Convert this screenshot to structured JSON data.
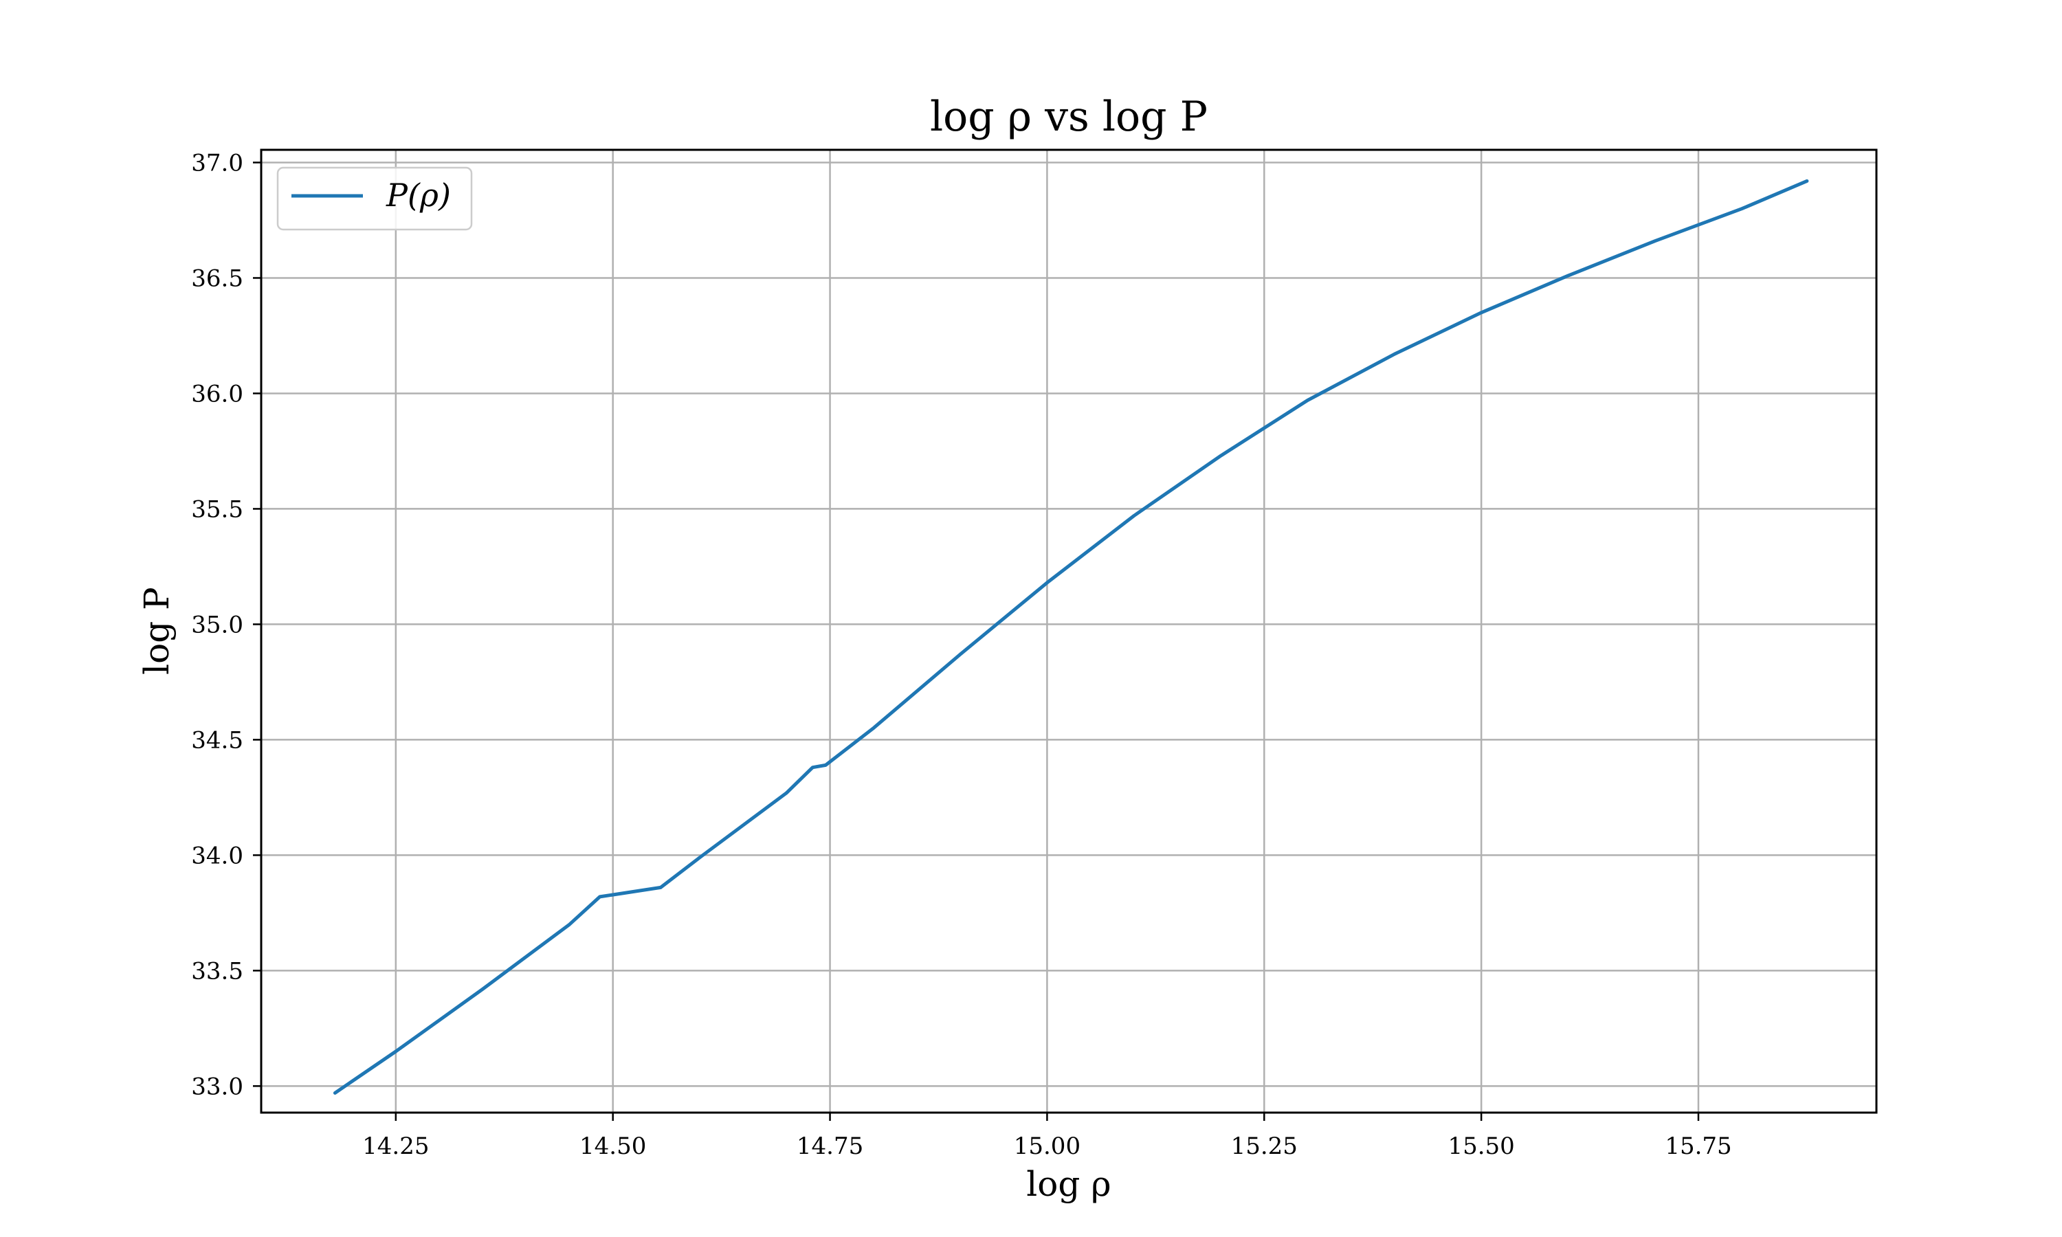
{
  "chart_data": {
    "type": "line",
    "title": "log ρ vs log P",
    "xlabel": "log ρ",
    "ylabel": "log P",
    "xlim": [
      14.095,
      15.955
    ],
    "ylim": [
      32.885,
      37.055
    ],
    "xticks": [
      "14.25",
      "14.50",
      "14.75",
      "15.00",
      "15.25",
      "15.50",
      "15.75"
    ],
    "xtick_values": [
      14.25,
      14.5,
      14.75,
      15.0,
      15.25,
      15.5,
      15.75
    ],
    "yticks": [
      "33.0",
      "33.5",
      "34.0",
      "34.5",
      "35.0",
      "35.5",
      "36.0",
      "36.5",
      "37.0"
    ],
    "ytick_values": [
      33.0,
      33.5,
      34.0,
      34.5,
      35.0,
      35.5,
      36.0,
      36.5,
      37.0
    ],
    "grid": true,
    "legend": {
      "position": "top-left"
    },
    "series": [
      {
        "name": "P(ρ)",
        "color": "#1f77b4",
        "x": [
          14.18,
          14.25,
          14.35,
          14.45,
          14.485,
          14.555,
          14.6,
          14.7,
          14.73,
          14.745,
          14.8,
          14.9,
          15.0,
          15.1,
          15.2,
          15.3,
          15.4,
          15.5,
          15.6,
          15.7,
          15.8,
          15.875
        ],
        "y": [
          32.97,
          33.15,
          33.42,
          33.7,
          33.82,
          33.86,
          33.99,
          34.27,
          34.38,
          34.39,
          34.55,
          34.87,
          35.18,
          35.47,
          35.73,
          35.97,
          36.17,
          36.35,
          36.51,
          36.66,
          36.8,
          36.92
        ]
      }
    ]
  }
}
